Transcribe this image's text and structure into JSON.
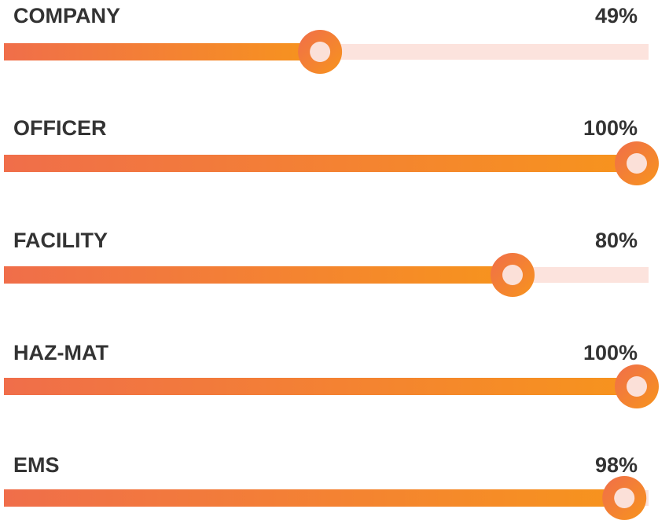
{
  "chart_data": {
    "type": "progress",
    "categories": [
      "COMPANY",
      "OFFICER",
      "FACILITY",
      "HAZ-MAT",
      "EMS"
    ],
    "values": [
      49,
      100,
      80,
      100,
      98
    ],
    "value_labels": [
      "49%",
      "100%",
      "80%",
      "100%",
      "98%"
    ],
    "xlim": [
      0,
      100
    ],
    "colors": {
      "start": "#f06e4a",
      "end": "#f7941d",
      "track": "#fce3dd",
      "knob_center": "#fbe0d8"
    }
  }
}
